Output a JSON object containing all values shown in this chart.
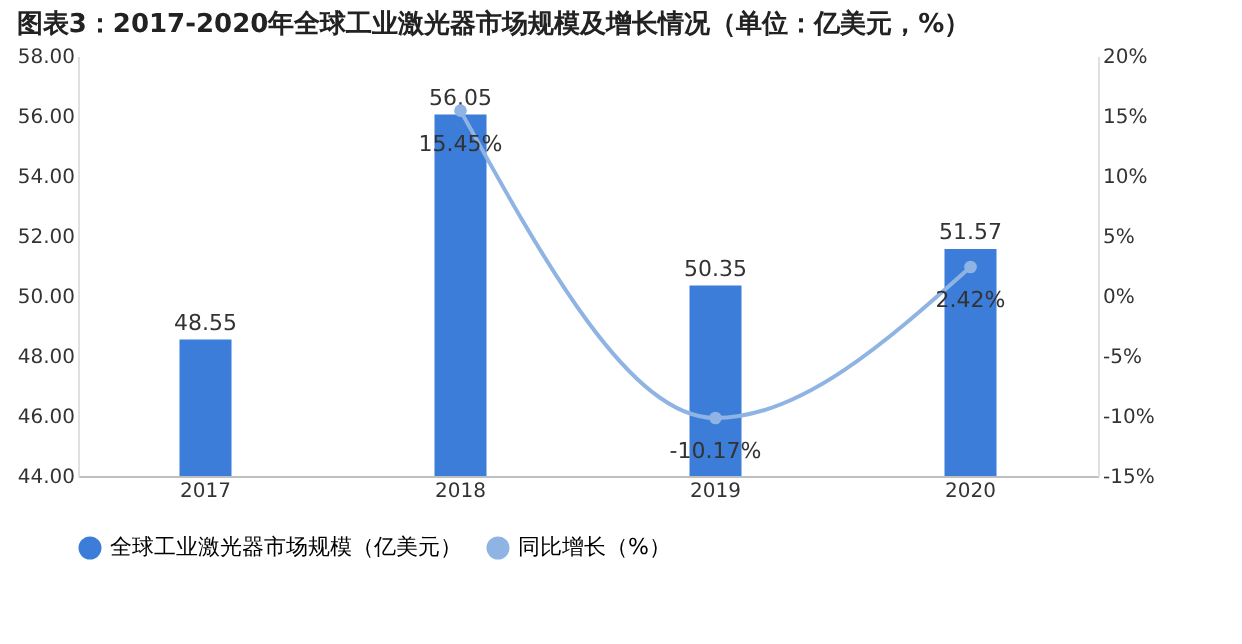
{
  "chart_data": {
    "type": "bar",
    "title": "图表3：2017-2020年全球工业激光器市场规模及增长情况（单位：亿美元，%）",
    "categories": [
      "2017",
      "2018",
      "2019",
      "2020"
    ],
    "series": [
      {
        "name": "全球工业激光器市场规模（亿美元）",
        "color": "#3b7dd8",
        "values": [
          48.55,
          56.05,
          50.35,
          51.57
        ],
        "value_labels": [
          "48.55",
          "56.05",
          "50.35",
          "51.57"
        ]
      },
      {
        "name": "同比增长（%）",
        "color": "#8fb4e3",
        "type": "line",
        "axis": "y2",
        "marker": "circle",
        "values": [
          null,
          15.45,
          -10.17,
          2.42
        ],
        "value_labels": [
          null,
          "15.45%",
          "-10.17%",
          "2.42%"
        ]
      }
    ],
    "ylim": [
      44,
      58
    ],
    "yticks": [
      {
        "value": 44,
        "label": "44.00"
      },
      {
        "value": 46,
        "label": "46.00"
      },
      {
        "value": 48,
        "label": "48.00"
      },
      {
        "value": 50,
        "label": "50.00"
      },
      {
        "value": 52,
        "label": "52.00"
      },
      {
        "value": 54,
        "label": "54.00"
      },
      {
        "value": 56,
        "label": "56.00"
      },
      {
        "value": 58,
        "label": "58.00"
      }
    ],
    "y2lim": [
      -15,
      20
    ],
    "y2ticks": [
      {
        "value": -15,
        "label": "-15%"
      },
      {
        "value": -10,
        "label": "-10%"
      },
      {
        "value": -5,
        "label": "-5%"
      },
      {
        "value": 0,
        "label": "0%"
      },
      {
        "value": 5,
        "label": "5%"
      },
      {
        "value": 10,
        "label": "10%"
      },
      {
        "value": 15,
        "label": "15%"
      },
      {
        "value": 20,
        "label": "20%"
      }
    ],
    "legend": "bottom"
  }
}
